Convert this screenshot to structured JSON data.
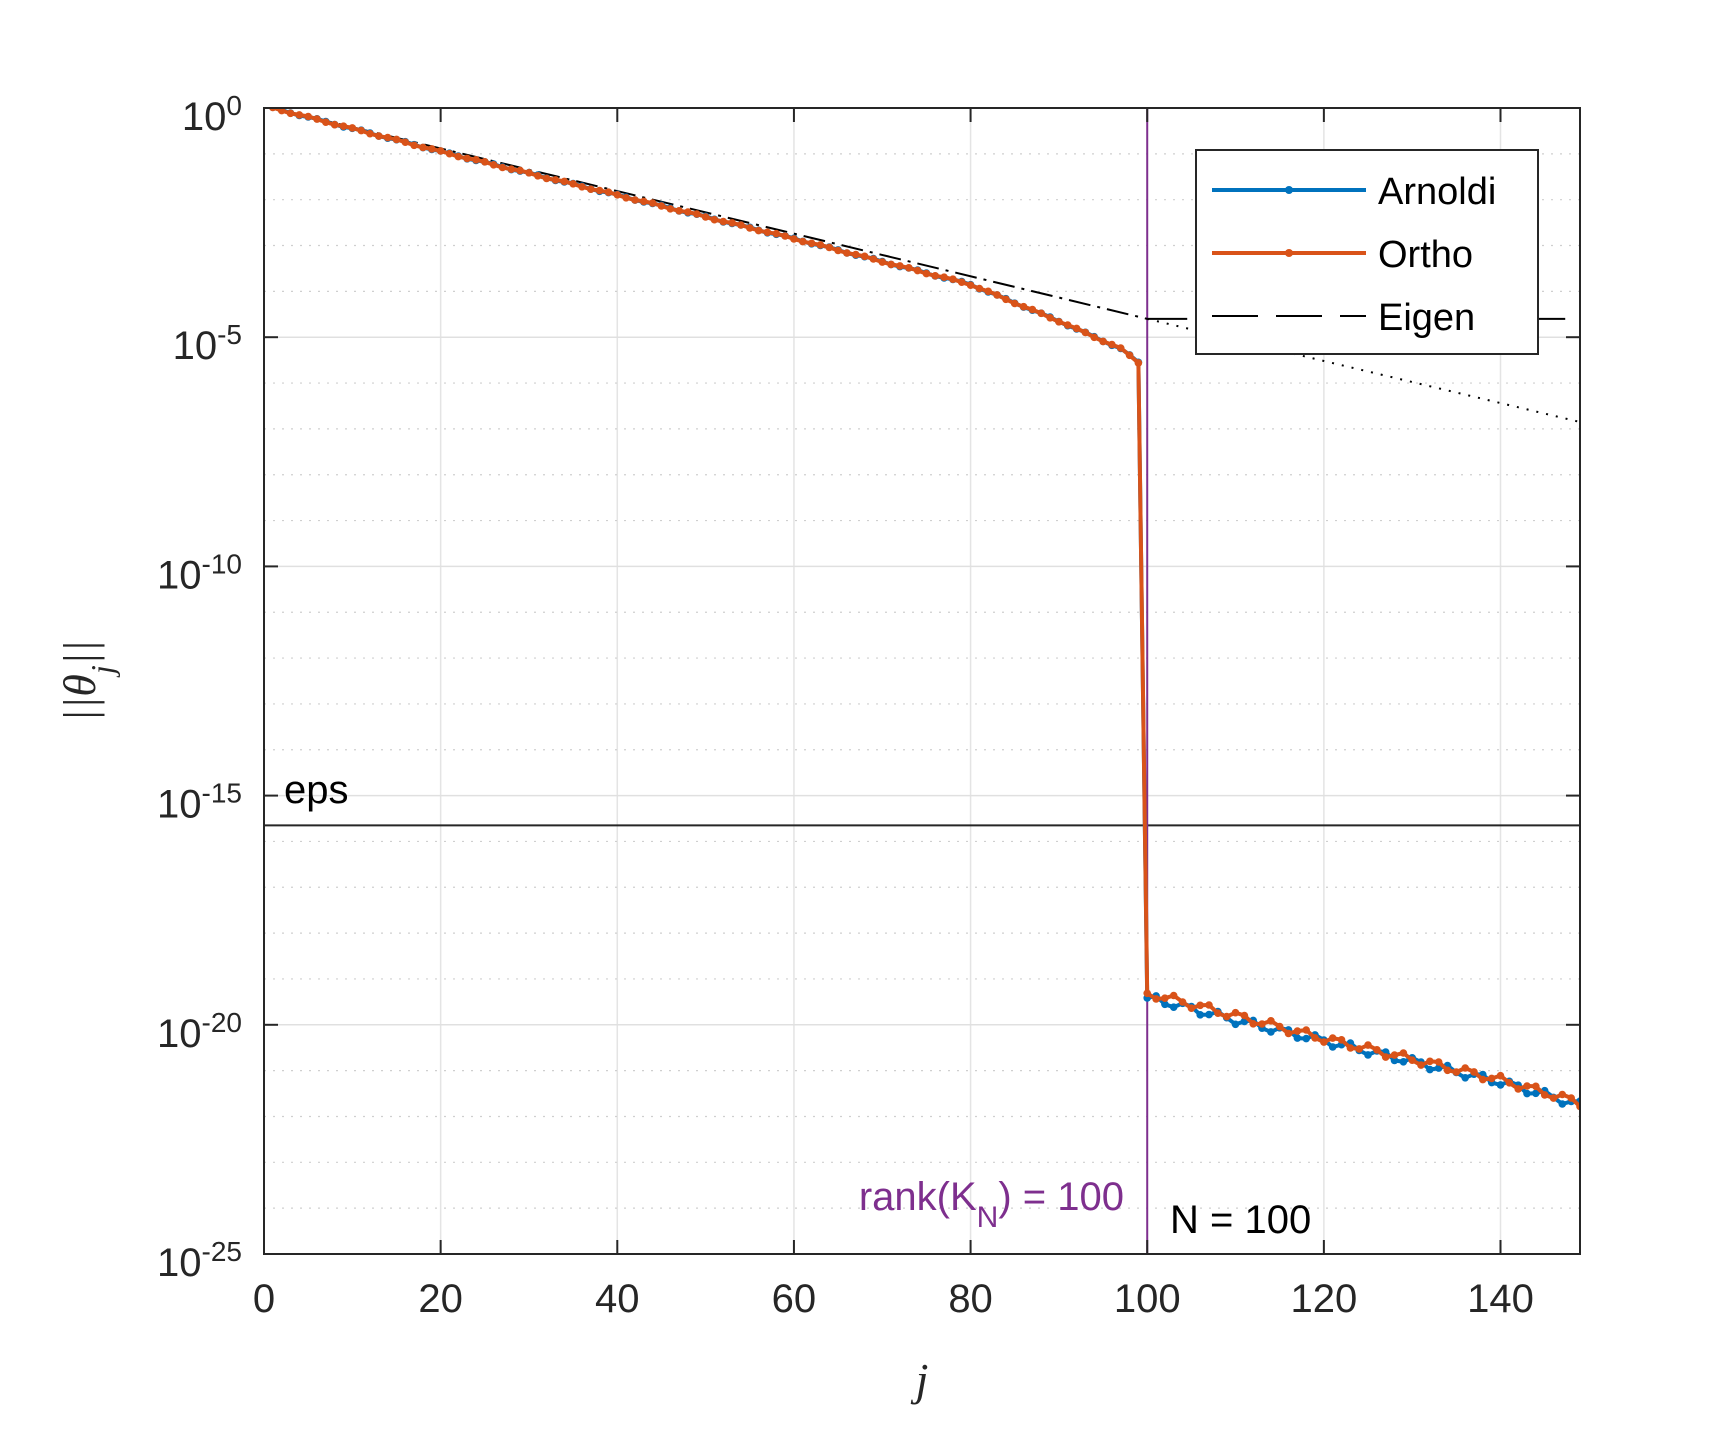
{
  "chart_data": {
    "type": "line",
    "xlabel": "j",
    "ylabel": "||θ_j||",
    "ylabel_parts": {
      "pre": "||",
      "theta": "θ",
      "sub": "j",
      "post": "||"
    },
    "yscale": "log",
    "xlim": [
      0,
      149
    ],
    "ylim_exponent": [
      -25,
      0
    ],
    "grid": true,
    "legend_position": "top-right",
    "x_ticks": [
      0,
      20,
      40,
      60,
      80,
      100,
      120,
      140
    ],
    "y_ticks": [
      {
        "base": "10",
        "exp": "0",
        "value": 0
      },
      {
        "base": "10",
        "exp": "-5",
        "value": -5
      },
      {
        "base": "10",
        "exp": "-10",
        "value": -10
      },
      {
        "base": "10",
        "exp": "-15",
        "value": -15
      },
      {
        "base": "10",
        "exp": "-20",
        "value": -20
      },
      {
        "base": "10",
        "exp": "-25",
        "value": -25
      }
    ],
    "series": [
      {
        "name": "Arnoldi",
        "color": "#0072BD",
        "marker": "dot",
        "description": "log10 norm vs j; piecewise linear knots",
        "knots": [
          [
            1,
            0
          ],
          [
            20,
            -0.95
          ],
          [
            40,
            -1.9
          ],
          [
            60,
            -2.85
          ],
          [
            80,
            -3.85
          ],
          [
            90,
            -4.65
          ],
          [
            97,
            -5.25
          ],
          [
            99,
            -5.55
          ],
          [
            100,
            -19.4
          ],
          [
            110,
            -19.9
          ],
          [
            120,
            -20.35
          ],
          [
            130,
            -20.8
          ],
          [
            140,
            -21.25
          ],
          [
            149,
            -21.75
          ]
        ]
      },
      {
        "name": "Ortho",
        "color": "#D95319",
        "marker": "dot",
        "description": "log10 norm vs j; piecewise linear knots",
        "knots": [
          [
            1,
            0
          ],
          [
            20,
            -0.95
          ],
          [
            40,
            -1.9
          ],
          [
            60,
            -2.85
          ],
          [
            80,
            -3.85
          ],
          [
            90,
            -4.65
          ],
          [
            97,
            -5.25
          ],
          [
            99,
            -5.55
          ],
          [
            100,
            -19.3
          ],
          [
            110,
            -19.8
          ],
          [
            120,
            -20.3
          ],
          [
            130,
            -20.75
          ],
          [
            140,
            -21.2
          ],
          [
            149,
            -21.7
          ]
        ]
      },
      {
        "name": "Eigen",
        "color": "#000000",
        "line_style": "dash-dot to N, dashed after, dotted continuation",
        "knots": [
          [
            1,
            0
          ],
          [
            100,
            -4.6
          ],
          [
            149,
            -4.6
          ]
        ],
        "continuation_knots": [
          [
            100,
            -4.6
          ],
          [
            149,
            -6.85
          ]
        ]
      }
    ],
    "annotations": {
      "eps": {
        "label": "eps",
        "value_exponent": -15.65
      },
      "rank": {
        "label_pre": "rank(K",
        "label_sub": "N",
        "label_post": ") = 100",
        "x": 100,
        "color": "#7E2F8E"
      },
      "n_label": {
        "label": "N = 100",
        "x": 100
      }
    }
  }
}
